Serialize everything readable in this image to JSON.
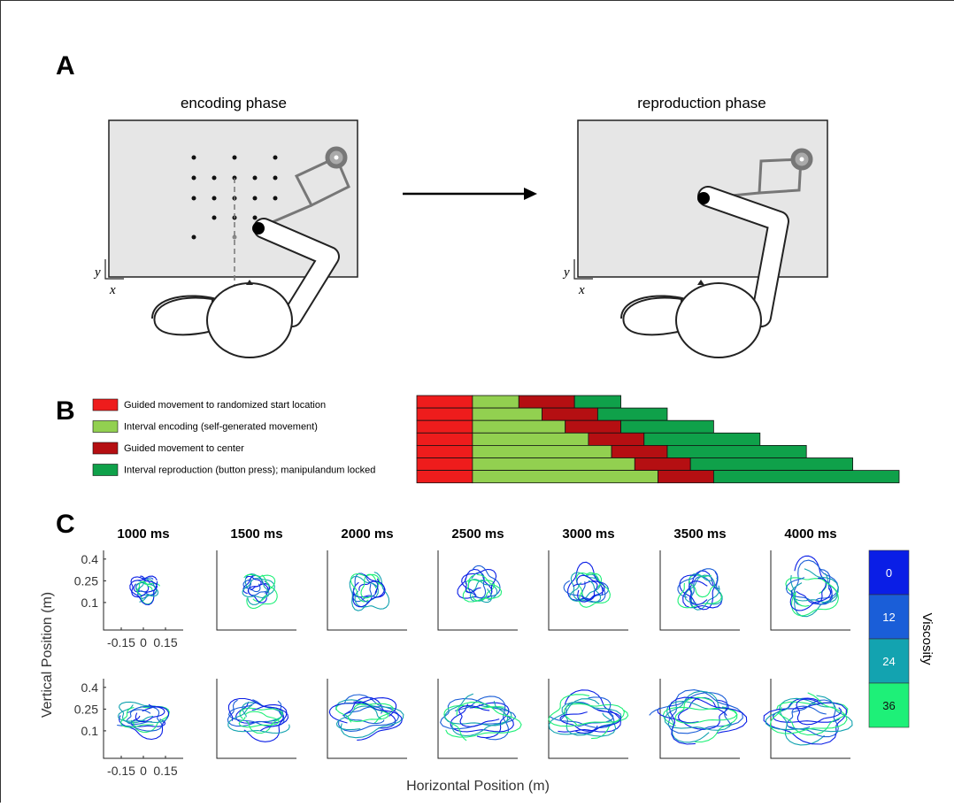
{
  "panel_labels": [
    "A",
    "B",
    "C"
  ],
  "panel_a": {
    "encoding_title": "encoding phase",
    "reproduction_title": "reproduction phase",
    "axis_y": "y",
    "axis_x": "x"
  },
  "chart_data": {
    "type": "bar",
    "orientation": "horizontal",
    "stacked": true,
    "categories": [
      null,
      null,
      null,
      null,
      null,
      null,
      null
    ],
    "series": [
      {
        "name": "Guided movement to randomized start location",
        "color": "#ee1c1c",
        "values": [
          1200,
          1200,
          1200,
          1200,
          1200,
          1200,
          1200
        ]
      },
      {
        "name": "Interval encoding (self-generated movement)",
        "color": "#92d050",
        "values": [
          1000,
          1500,
          2000,
          2500,
          3000,
          3500,
          4000
        ]
      },
      {
        "name": "Guided movement to center",
        "color": "#b50f12",
        "values": [
          1200,
          1200,
          1200,
          1200,
          1200,
          1200,
          1200
        ]
      },
      {
        "name": "Interval reproduction (button press); manipulandum locked",
        "color": "#0fa14a",
        "values": [
          1000,
          1500,
          2000,
          2500,
          3000,
          3500,
          4000
        ]
      }
    ],
    "xlim": [
      0,
      10400
    ]
  },
  "panel_c": {
    "titles": [
      "1000 ms",
      "1500 ms",
      "2000 ms",
      "2500 ms",
      "3000 ms",
      "3500 ms",
      "4000 ms"
    ],
    "ylabel": "Vertical Position (m)",
    "xlabel": "Horizontal Position (m)",
    "yticks": [
      0.4,
      0.25,
      0.1
    ],
    "ylim": [
      -0.09,
      0.46
    ],
    "xticks": [
      -0.15,
      0,
      0.15
    ],
    "xlim": [
      -0.27,
      0.27
    ],
    "colorbar": {
      "label": "Viscosity",
      "levels": [
        0,
        12,
        24,
        36
      ],
      "colors": [
        "#0a1ee6",
        "#1a5ed8",
        "#13a3b0",
        "#1ef078"
      ]
    }
  }
}
